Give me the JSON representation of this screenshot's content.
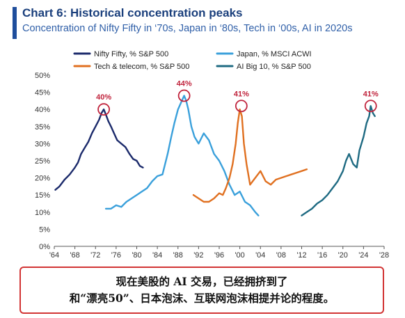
{
  "chart_data": {
    "type": "line",
    "title": "Chart 6: Historical concentration peaks",
    "subtitle": "Concentration of Nifty Fifty in ‘70s, Japan in ‘80s, Tech in ‘00s, AI in 2020s",
    "xlabel": "",
    "ylabel": "",
    "xlim": [
      1964,
      2028
    ],
    "ylim": [
      0,
      50
    ],
    "x_ticks": [
      "'64",
      "'68",
      "'72",
      "'76",
      "'80",
      "'84",
      "'88",
      "'92",
      "'96",
      "'00",
      "'04",
      "'08",
      "'12",
      "'16",
      "'20",
      "'24",
      "'28"
    ],
    "y_ticks": [
      "0%",
      "5%",
      "10%",
      "15%",
      "20%",
      "25%",
      "30%",
      "35%",
      "40%",
      "45%",
      "50%"
    ],
    "grid": false,
    "legend_position": "top",
    "series": [
      {
        "name": "Nifty Fifty, % S&P 500",
        "color": "#1b2a6b",
        "x": [
          1964.2,
          1965,
          1966,
          1967,
          1968,
          1968.6,
          1969.2,
          1970,
          1970.6,
          1971.3,
          1972,
          1972.7,
          1973.2,
          1973.6,
          1974,
          1974.5,
          1975,
          1975.6,
          1976.2,
          1977,
          1977.8,
          1978.6,
          1979.3,
          1980,
          1980.6,
          1981.2
        ],
        "y": [
          16.5,
          17.5,
          19.5,
          21,
          23,
          24.5,
          27,
          29,
          30.5,
          33,
          35,
          37,
          39,
          40,
          38.5,
          36.5,
          35,
          33,
          31,
          30,
          29,
          27,
          25.5,
          25,
          23.5,
          23
        ]
      },
      {
        "name": "Japan, % MSCI ACWI",
        "color": "#3aa0db",
        "x": [
          1974,
          1975,
          1976,
          1977,
          1978,
          1979,
          1980,
          1981,
          1982,
          1983,
          1984,
          1985,
          1986,
          1986.7,
          1987.3,
          1988,
          1988.6,
          1989.2,
          1989.6,
          1990,
          1990.6,
          1991.2,
          1992,
          1993,
          1994,
          1995,
          1996,
          1997,
          1998,
          1999,
          2000,
          2001,
          2002,
          2003,
          2003.6
        ],
        "y": [
          11,
          11,
          12,
          11.5,
          13,
          14,
          15,
          16,
          17,
          19,
          20.5,
          21,
          27,
          32,
          36,
          40,
          42,
          44,
          42.5,
          40,
          35,
          32,
          30,
          33,
          31,
          27,
          25,
          22,
          18,
          15,
          16,
          13,
          12,
          10,
          9
        ]
      },
      {
        "name": "Tech & telecom, % S&P 500",
        "color": "#e07020",
        "x": [
          1991,
          1992,
          1993,
          1994,
          1995,
          1996,
          1996.7,
          1997.3,
          1998,
          1998.6,
          1999.2,
          1999.6,
          2000,
          2000.4,
          2000.8,
          2001.3,
          2002,
          2003,
          2004,
          2005,
          2006,
          2007,
          2008,
          2009,
          2010,
          2011,
          2012,
          2013
        ],
        "y": [
          15,
          14,
          13,
          13,
          14,
          15.5,
          15,
          17,
          20,
          24,
          30,
          36,
          40,
          38,
          30,
          24,
          18,
          20,
          22,
          19,
          18,
          19.5,
          20,
          20.5,
          21,
          21.5,
          22,
          22.5
        ]
      },
      {
        "name": "AI Big 10, % S&P 500",
        "color": "#1e6a82",
        "x": [
          2012,
          2013,
          2014,
          2015,
          2016,
          2017,
          2018,
          2019,
          2020,
          2020.6,
          2021.2,
          2022,
          2022.7,
          2023.2,
          2024,
          2024.6,
          2025.1,
          2025.4,
          2025.8,
          2026.2
        ],
        "y": [
          9,
          10,
          11,
          12.5,
          13.5,
          15,
          17,
          19,
          22,
          25,
          27,
          24,
          23,
          28,
          32,
          36,
          38,
          41,
          39,
          38
        ]
      }
    ],
    "annotations": [
      {
        "label": "40%",
        "x": 1973.6,
        "y": 40,
        "color": "#c0233c"
      },
      {
        "label": "44%",
        "x": 1989.2,
        "y": 44,
        "color": "#c0233c"
      },
      {
        "label": "41%",
        "x": 2000.3,
        "y": 41,
        "color": "#c0233c"
      },
      {
        "label": "41%",
        "x": 2025.4,
        "y": 41,
        "color": "#c0233c"
      }
    ]
  },
  "caption": {
    "line1": "现在美股的 AI 交易，已经拥挤到了",
    "line2": "和“漂亮50”、日本泡沫、互联网泡沫相提并论的程度。"
  }
}
